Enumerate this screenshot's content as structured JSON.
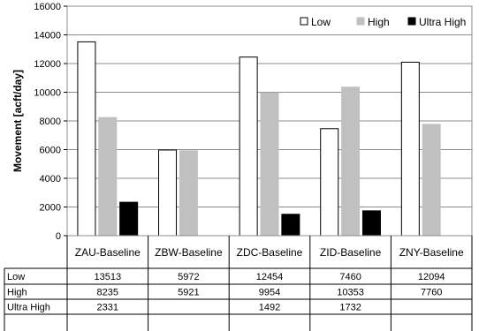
{
  "chart_data": {
    "type": "bar",
    "ylabel": "Movement [acft/day]",
    "ylim": [
      0,
      16000
    ],
    "yticks": [
      0,
      2000,
      4000,
      6000,
      8000,
      10000,
      12000,
      14000,
      16000
    ],
    "grid": true,
    "legend_position": "top-right",
    "categories": [
      "ZAU-Baseline",
      "ZBW-Baseline",
      "ZDC-Baseline",
      "ZID-Baseline",
      "ZNY-Baseline"
    ],
    "series": [
      {
        "name": "Low",
        "values": [
          13513,
          5972,
          12454,
          7460,
          12094
        ],
        "display": [
          "13513",
          "5972",
          "12454",
          "7460",
          "12094"
        ],
        "fill": "#ffffff",
        "stroke": "#000000"
      },
      {
        "name": "High",
        "values": [
          8235,
          5921,
          9954,
          10353,
          7760
        ],
        "display": [
          "8235",
          "5921",
          "9954",
          "10353",
          "7760"
        ],
        "fill": "#c0c0c0",
        "stroke": "#c0c0c0"
      },
      {
        "name": "Ultra High",
        "values": [
          2331,
          null,
          1492,
          1732,
          null
        ],
        "display": [
          "2331",
          "",
          "1492",
          "1732",
          ""
        ],
        "fill": "#000000",
        "stroke": "#000000"
      }
    ]
  }
}
